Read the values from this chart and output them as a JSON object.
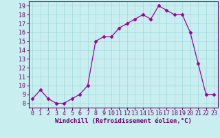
{
  "x": [
    0,
    1,
    2,
    3,
    4,
    5,
    6,
    7,
    8,
    9,
    10,
    11,
    12,
    13,
    14,
    15,
    16,
    17,
    18,
    19,
    20,
    21,
    22,
    23
  ],
  "y": [
    8.5,
    9.5,
    8.5,
    8.0,
    8.0,
    8.5,
    9.0,
    10.0,
    15.0,
    15.5,
    15.5,
    16.5,
    17.0,
    17.5,
    18.0,
    17.5,
    19.0,
    18.5,
    18.0,
    18.0,
    16.0,
    12.5,
    9.0,
    9.0
  ],
  "line_color": "#990099",
  "marker": "D",
  "marker_size": 2.5,
  "bg_color": "#c8eef0",
  "grid_color": "#a0d8d8",
  "xlabel": "Windchill (Refroidissement éolien,°C)",
  "xlim": [
    -0.5,
    23.5
  ],
  "ylim": [
    7.5,
    19.5
  ],
  "yticks": [
    8,
    9,
    10,
    11,
    12,
    13,
    14,
    15,
    16,
    17,
    18,
    19
  ],
  "xticks": [
    0,
    1,
    2,
    3,
    4,
    5,
    6,
    7,
    8,
    9,
    10,
    11,
    12,
    13,
    14,
    15,
    16,
    17,
    18,
    19,
    20,
    21,
    22,
    23
  ],
  "label_fontsize": 6.5,
  "tick_fontsize": 6,
  "spine_color": "#660066"
}
